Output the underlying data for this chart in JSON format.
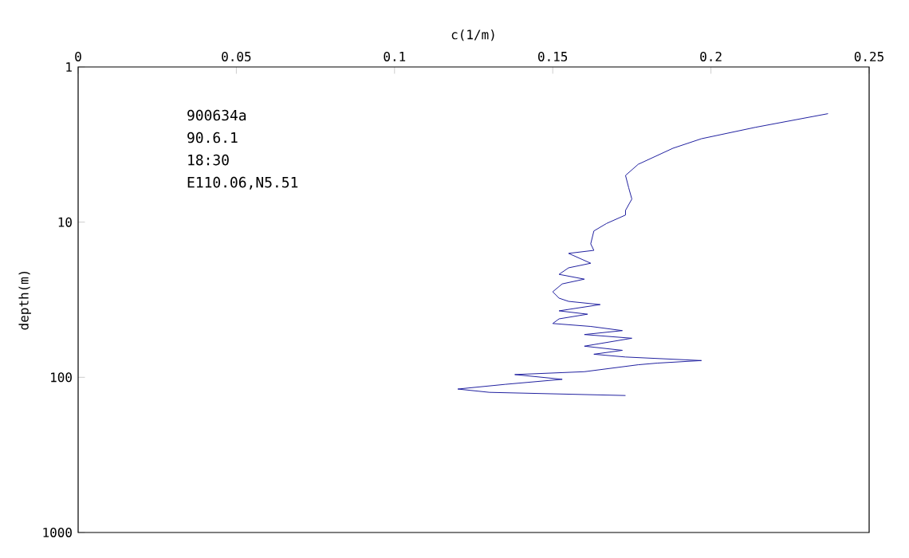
{
  "chart_data": {
    "type": "line",
    "xlabel": "c(1/m)",
    "ylabel": "depth(m)",
    "xlim": [
      0,
      0.25
    ],
    "xticks": [
      0,
      0.05,
      0.1,
      0.15,
      0.2,
      0.25
    ],
    "ylim": [
      1000,
      1
    ],
    "yticks": [
      1,
      10,
      100,
      1000
    ],
    "log": "y",
    "grid": false,
    "annotations": [
      "900634a",
      "90.6.1",
      "18:30",
      "E110.06,N5.51"
    ],
    "series": [
      {
        "color": "#2020a0",
        "x": [
          0.237,
          0.214,
          0.197,
          0.188,
          0.177,
          0.173,
          0.174,
          0.175,
          0.173,
          0.173,
          0.167,
          0.163,
          0.162,
          0.163,
          0.155,
          0.162,
          0.155,
          0.152,
          0.16,
          0.153,
          0.15,
          0.152,
          0.155,
          0.165,
          0.152,
          0.161,
          0.152,
          0.15,
          0.162,
          0.172,
          0.16,
          0.175,
          0.16,
          0.172,
          0.163,
          0.173,
          0.197,
          0.183,
          0.177,
          0.16,
          0.138,
          0.153,
          0.135,
          0.12,
          0.13,
          0.173
        ],
        "values": [
          2.0,
          2.45,
          2.9,
          3.34,
          4.24,
          5.0,
          6.0,
          7.1,
          8.4,
          9.0,
          10.2,
          11.4,
          13.8,
          15.2,
          15.9,
          18.4,
          19.7,
          21.7,
          23.3,
          25,
          28.1,
          30.9,
          32.4,
          34,
          37.3,
          39.2,
          42,
          45,
          47,
          50,
          53,
          56,
          63,
          67,
          71,
          74,
          78,
          81,
          83,
          92,
          96,
          103,
          111,
          119,
          125,
          131
        ]
      }
    ]
  }
}
